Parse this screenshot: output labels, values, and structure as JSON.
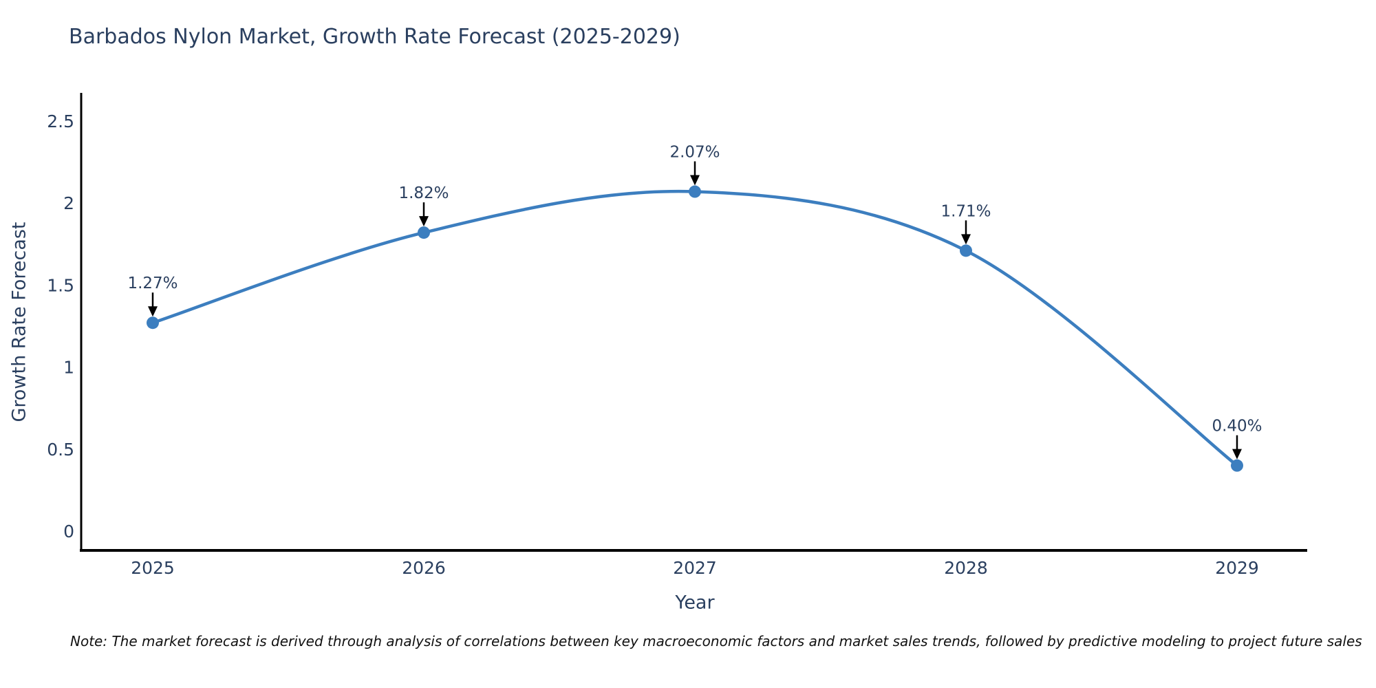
{
  "title": "Barbados Nylon Market, Growth Rate Forecast (2025-2029)",
  "note": "Note: The market forecast is derived through analysis of correlations between key macroeconomic factors and market sales trends, followed by predictive modeling to project future sales",
  "chart_data": {
    "type": "line",
    "title": "Barbados Nylon Market, Growth Rate Forecast (2025-2029)",
    "xlabel": "Year",
    "ylabel": "Growth Rate Forecast",
    "categories": [
      "2025",
      "2026",
      "2027",
      "2028",
      "2029"
    ],
    "values": [
      1.27,
      1.82,
      2.07,
      1.71,
      0.4
    ],
    "point_labels": [
      "1.27%",
      "1.82%",
      "2.07%",
      "1.71%",
      "0.40%"
    ],
    "ylim": [
      0,
      2.5
    ],
    "yticks": [
      0,
      0.5,
      1,
      1.5,
      2,
      2.5
    ],
    "ytick_labels": [
      "0",
      "0.5",
      "1",
      "1.5",
      "2",
      "2.5"
    ],
    "line_shape": "spline",
    "grid": false,
    "legend": "none",
    "colors": {
      "line": "#3C7EBF",
      "marker": "#3C7EBF",
      "axis": "#000000",
      "tick_text": "#2a3f5f",
      "annotation_text": "#2a3f5f",
      "annotation_arrow": "#000000"
    }
  }
}
